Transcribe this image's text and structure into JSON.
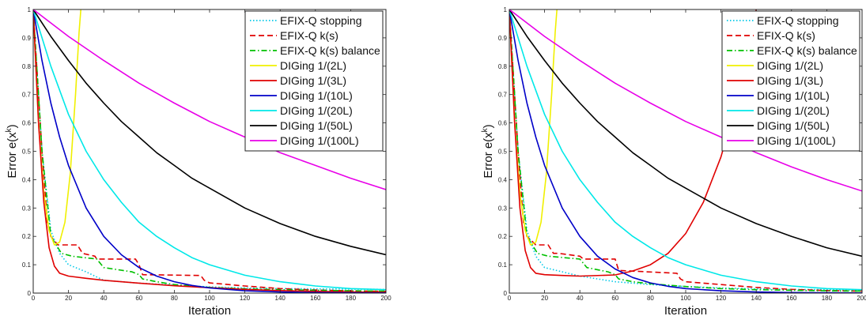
{
  "chart_data": [
    {
      "type": "line",
      "xlabel": "Iteration",
      "ylabel": "Error e(x^k)",
      "xlim": [
        0,
        200
      ],
      "ylim": [
        0,
        1
      ],
      "xticks": [
        0,
        20,
        40,
        60,
        80,
        100,
        120,
        140,
        160,
        180,
        200
      ],
      "yticks": [
        0,
        0.1,
        0.2,
        0.3,
        0.4,
        0.5,
        0.6,
        0.7,
        0.8,
        0.9,
        1
      ],
      "legend_position": "top-right",
      "series": [
        {
          "name": "EFIX-Q stopping",
          "color": "#00c8e8",
          "style": "dotted",
          "x": [
            0,
            5,
            10,
            15,
            20,
            30,
            35,
            40,
            60,
            80,
            100,
            120,
            140,
            160,
            180,
            200
          ],
          "y": [
            1,
            0.5,
            0.22,
            0.14,
            0.1,
            0.075,
            0.06,
            0.045,
            0.035,
            0.028,
            0.022,
            0.018,
            0.016,
            0.015,
            0.014,
            0.013
          ]
        },
        {
          "name": "EFIX-Q k(s)",
          "color": "#e00000",
          "style": "dashed",
          "x": [
            0,
            5,
            8,
            10,
            14,
            15,
            25,
            28,
            35,
            36,
            58,
            60,
            62,
            95,
            97,
            100,
            120,
            140,
            160,
            180,
            200
          ],
          "y": [
            1,
            0.5,
            0.25,
            0.2,
            0.17,
            0.17,
            0.17,
            0.14,
            0.13,
            0.12,
            0.12,
            0.1,
            0.065,
            0.062,
            0.045,
            0.036,
            0.025,
            0.016,
            0.011,
            0.008,
            0.006
          ]
        },
        {
          "name": "EFIX-Q k(s) balance",
          "color": "#00c000",
          "style": "dashdot",
          "x": [
            0,
            5,
            10,
            13,
            16,
            22,
            36,
            40,
            56,
            60,
            62,
            70,
            80,
            100,
            120,
            140,
            160,
            180,
            200
          ],
          "y": [
            1,
            0.5,
            0.2,
            0.17,
            0.14,
            0.13,
            0.12,
            0.09,
            0.075,
            0.065,
            0.05,
            0.04,
            0.03,
            0.02,
            0.015,
            0.012,
            0.01,
            0.008,
            0.007
          ]
        },
        {
          "name": "DIGing 1/(2L)",
          "color": "#f0f000",
          "style": "solid",
          "x": [
            0,
            3,
            6,
            9,
            12,
            15,
            18,
            21,
            24,
            26,
            27
          ],
          "y": [
            1,
            0.6,
            0.35,
            0.22,
            0.17,
            0.18,
            0.25,
            0.42,
            0.7,
            0.92,
            1.0
          ]
        },
        {
          "name": "DIGing 1/(3L)",
          "color": "#e00000",
          "style": "solid",
          "x": [
            0,
            3,
            6,
            9,
            12,
            15,
            20,
            30,
            40,
            60,
            80,
            100,
            120,
            140,
            160,
            180,
            200
          ],
          "y": [
            1,
            0.6,
            0.32,
            0.16,
            0.095,
            0.07,
            0.06,
            0.052,
            0.045,
            0.035,
            0.026,
            0.019,
            0.013,
            0.009,
            0.006,
            0.004,
            0.003
          ]
        },
        {
          "name": "DIGing 1/(10L)",
          "color": "#0000c8",
          "style": "solid",
          "x": [
            0,
            5,
            10,
            15,
            20,
            30,
            40,
            50,
            60,
            70,
            80,
            90,
            100,
            120,
            140,
            160,
            180,
            200
          ],
          "y": [
            1,
            0.82,
            0.67,
            0.55,
            0.45,
            0.3,
            0.2,
            0.135,
            0.09,
            0.06,
            0.04,
            0.027,
            0.018,
            0.008,
            0.004,
            0.002,
            0.001,
            0.0005
          ]
        },
        {
          "name": "DIGing 1/(20L)",
          "color": "#00e8e8",
          "style": "solid",
          "x": [
            0,
            10,
            20,
            30,
            40,
            50,
            60,
            70,
            80,
            90,
            100,
            120,
            140,
            160,
            180,
            200
          ],
          "y": [
            1,
            0.8,
            0.63,
            0.5,
            0.4,
            0.32,
            0.25,
            0.2,
            0.16,
            0.125,
            0.1,
            0.063,
            0.04,
            0.025,
            0.016,
            0.012
          ]
        },
        {
          "name": "DIGing 1/(50L)",
          "color": "#000000",
          "style": "solid",
          "x": [
            0,
            10,
            20,
            30,
            40,
            50,
            60,
            70,
            80,
            90,
            100,
            120,
            140,
            160,
            180,
            200
          ],
          "y": [
            1,
            0.905,
            0.82,
            0.74,
            0.67,
            0.605,
            0.55,
            0.495,
            0.45,
            0.405,
            0.37,
            0.3,
            0.245,
            0.2,
            0.165,
            0.135
          ]
        },
        {
          "name": "DIGing 1/(100L)",
          "color": "#e800e8",
          "style": "solid",
          "x": [
            0,
            20,
            40,
            60,
            80,
            100,
            120,
            140,
            160,
            180,
            200
          ],
          "y": [
            1,
            0.905,
            0.82,
            0.74,
            0.67,
            0.605,
            0.55,
            0.495,
            0.45,
            0.405,
            0.365
          ]
        }
      ]
    },
    {
      "type": "line",
      "xlabel": "Iteration",
      "ylabel": "Error e(x^k)",
      "xlim": [
        0,
        200
      ],
      "ylim": [
        0,
        1
      ],
      "xticks": [
        0,
        20,
        40,
        60,
        80,
        100,
        120,
        140,
        160,
        180,
        200
      ],
      "yticks": [
        0,
        0.1,
        0.2,
        0.3,
        0.4,
        0.5,
        0.6,
        0.7,
        0.8,
        0.9,
        1
      ],
      "legend_position": "top-right",
      "series": [
        {
          "name": "EFIX-Q stopping",
          "color": "#00c8e8",
          "style": "dotted",
          "x": [
            0,
            5,
            10,
            15,
            20,
            40,
            60,
            80,
            100,
            120,
            140,
            160,
            180,
            200
          ],
          "y": [
            1,
            0.5,
            0.22,
            0.13,
            0.09,
            0.06,
            0.04,
            0.03,
            0.023,
            0.018,
            0.015,
            0.013,
            0.012,
            0.011
          ]
        },
        {
          "name": "EFIX-Q k(s)",
          "color": "#e00000",
          "style": "dashed",
          "x": [
            0,
            5,
            8,
            10,
            15,
            22,
            25,
            28,
            40,
            42,
            60,
            62,
            95,
            97,
            100,
            120,
            140,
            160,
            180,
            200
          ],
          "y": [
            1,
            0.5,
            0.25,
            0.2,
            0.17,
            0.17,
            0.14,
            0.14,
            0.13,
            0.12,
            0.12,
            0.08,
            0.07,
            0.05,
            0.04,
            0.03,
            0.02,
            0.013,
            0.009,
            0.007
          ]
        },
        {
          "name": "EFIX-Q k(s) balance",
          "color": "#00c000",
          "style": "dashdot",
          "x": [
            0,
            5,
            10,
            13,
            16,
            22,
            40,
            44,
            56,
            60,
            62,
            70,
            80,
            100,
            120,
            140,
            160,
            180,
            200
          ],
          "y": [
            1,
            0.5,
            0.2,
            0.17,
            0.14,
            0.13,
            0.12,
            0.09,
            0.075,
            0.065,
            0.05,
            0.04,
            0.033,
            0.023,
            0.016,
            0.012,
            0.01,
            0.008,
            0.007
          ]
        },
        {
          "name": "DIGing 1/(2L)",
          "color": "#f0f000",
          "style": "solid",
          "x": [
            0,
            3,
            6,
            9,
            12,
            15,
            18,
            21,
            24,
            26,
            27
          ],
          "y": [
            1,
            0.6,
            0.35,
            0.22,
            0.17,
            0.18,
            0.25,
            0.42,
            0.7,
            0.92,
            1.0
          ]
        },
        {
          "name": "DIGing 1/(3L)",
          "color": "#e00000",
          "style": "solid",
          "x": [
            0,
            3,
            6,
            9,
            12,
            15,
            20,
            30,
            40,
            60,
            70,
            80,
            90,
            100,
            110,
            120,
            130,
            135,
            140
          ],
          "y": [
            1,
            0.6,
            0.3,
            0.15,
            0.09,
            0.07,
            0.065,
            0.062,
            0.06,
            0.064,
            0.078,
            0.1,
            0.14,
            0.21,
            0.32,
            0.48,
            0.7,
            0.85,
            1.0
          ]
        },
        {
          "name": "DIGing 1/(10L)",
          "color": "#0000c8",
          "style": "solid",
          "x": [
            0,
            5,
            10,
            15,
            20,
            30,
            40,
            50,
            60,
            70,
            80,
            90,
            100,
            120,
            140,
            160,
            180,
            200
          ],
          "y": [
            1,
            0.82,
            0.67,
            0.55,
            0.45,
            0.3,
            0.2,
            0.13,
            0.085,
            0.055,
            0.036,
            0.024,
            0.016,
            0.008,
            0.004,
            0.002,
            0.001,
            0.0005
          ]
        },
        {
          "name": "DIGing 1/(20L)",
          "color": "#00e8e8",
          "style": "solid",
          "x": [
            0,
            10,
            20,
            30,
            40,
            50,
            60,
            70,
            80,
            90,
            100,
            120,
            140,
            160,
            180,
            200
          ],
          "y": [
            1,
            0.8,
            0.63,
            0.5,
            0.4,
            0.32,
            0.25,
            0.2,
            0.16,
            0.125,
            0.1,
            0.063,
            0.04,
            0.025,
            0.016,
            0.012
          ]
        },
        {
          "name": "DIGing 1/(50L)",
          "color": "#000000",
          "style": "solid",
          "x": [
            0,
            10,
            20,
            30,
            40,
            50,
            60,
            70,
            80,
            90,
            100,
            120,
            140,
            160,
            180,
            200
          ],
          "y": [
            1,
            0.905,
            0.82,
            0.74,
            0.67,
            0.605,
            0.55,
            0.495,
            0.45,
            0.405,
            0.37,
            0.3,
            0.245,
            0.2,
            0.16,
            0.13
          ]
        },
        {
          "name": "DIGing 1/(100L)",
          "color": "#e800e8",
          "style": "solid",
          "x": [
            0,
            20,
            40,
            60,
            80,
            100,
            120,
            140,
            160,
            180,
            200
          ],
          "y": [
            1,
            0.905,
            0.82,
            0.74,
            0.67,
            0.605,
            0.55,
            0.495,
            0.445,
            0.4,
            0.36
          ]
        }
      ]
    }
  ]
}
